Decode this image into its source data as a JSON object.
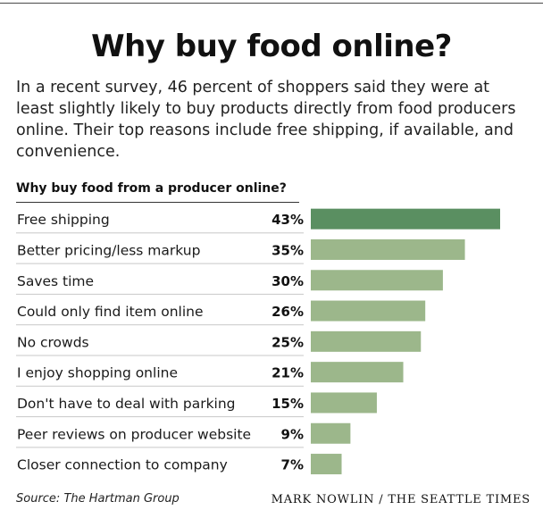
{
  "header": {
    "title": "Why buy food online?",
    "intro": "In a recent survey, 46 percent of shoppers said they were at least slightly likely to buy products directly from food producers online. Their top reasons include free shipping, if available, and convenience."
  },
  "footer": {
    "source": "Source: The Hartman Group",
    "credit": "MARK NOWLIN / THE SEATTLE TIMES"
  },
  "colors": {
    "highlight_bar": "#5a8f61",
    "bar": "#9cb78b",
    "rule": "#c8c8c8"
  },
  "chart_data": {
    "type": "bar",
    "orientation": "horizontal",
    "title": "Why buy food from a producer online?",
    "categories": [
      "Free shipping",
      "Better pricing/less markup",
      "Saves time",
      "Could only find item online",
      "No crowds",
      "I enjoy shopping online",
      "Don't have to deal with parking",
      "Peer reviews on producer website",
      "Closer connection to company"
    ],
    "values": [
      43,
      35,
      30,
      26,
      25,
      21,
      15,
      9,
      7
    ],
    "value_labels": [
      "43%",
      "35%",
      "30%",
      "26%",
      "25%",
      "21%",
      "15%",
      "9%",
      "7%"
    ],
    "highlight_index": 0,
    "xlim": [
      0,
      43
    ],
    "grid": false,
    "legend": "none"
  }
}
